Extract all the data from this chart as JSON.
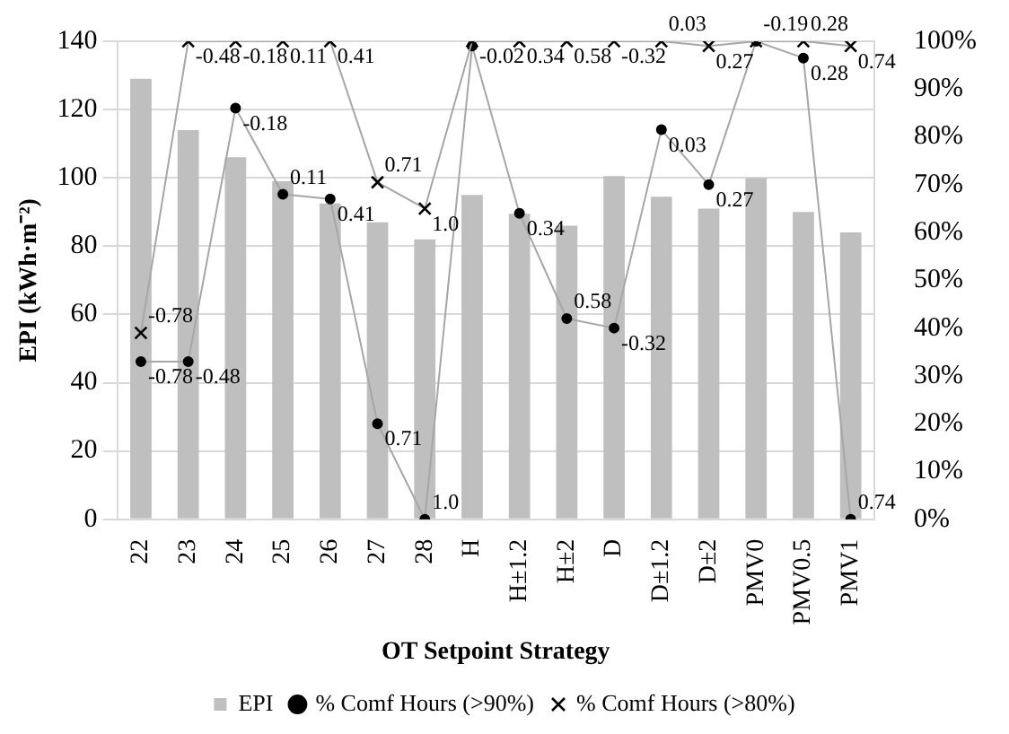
{
  "chart_data": {
    "type": "bar",
    "xlabel": "OT Setpoint Strategy",
    "ylabel": "EPI (kWh·m⁻²)",
    "categories": [
      "22",
      "23",
      "24",
      "25",
      "26",
      "27",
      "28",
      "H",
      "H±1.2",
      "H±2",
      "D",
      "D±1.2",
      "D±2",
      "PMV0",
      "PMV0.5",
      "PMV1"
    ],
    "series": [
      {
        "name": "EPI",
        "type": "bar",
        "color": "#bfbfbf",
        "values": [
          129,
          114,
          106,
          99,
          92.5,
          87,
          82,
          95,
          89.5,
          86,
          100.5,
          94.5,
          91,
          100,
          90,
          84
        ]
      },
      {
        "name": "% Comf Hours (>90%)",
        "type": "line",
        "axis": "y2",
        "color": "#000000",
        "marker": "circle",
        "values": [
          33,
          33,
          86,
          68,
          67,
          20,
          0,
          99,
          64,
          42,
          40,
          81.5,
          70,
          100,
          96.5,
          0
        ]
      },
      {
        "name": "% Comf Hours (>80%)",
        "type": "line",
        "axis": "y2",
        "color": "#000000",
        "marker": "cross",
        "values": [
          39,
          100,
          100,
          100,
          100,
          70.5,
          65,
          100,
          100,
          100,
          100,
          100,
          99,
          100,
          100,
          99
        ]
      }
    ],
    "annotations": [
      {
        "text": "-0.78",
        "x": "22",
        "y": 46.2
      },
      {
        "text": "-0.48",
        "x": "23",
        "y": 46.2
      },
      {
        "text": "-0.18",
        "x": "24",
        "y": 120.4
      },
      {
        "text": "0.11",
        "x": "25",
        "y": 95.2
      },
      {
        "text": "0.41",
        "x": "26",
        "y": 93.8
      },
      {
        "text": "0.71",
        "x": "27",
        "y": 28
      },
      {
        "text": "1.0",
        "x": "28",
        "y": 0
      },
      {
        "text": "0.34",
        "x": "H±1.2",
        "y": 89.6
      },
      {
        "text": "0.58",
        "x": "H±2",
        "y": 58.8
      },
      {
        "text": "-0.32",
        "x": "D",
        "y": 56
      },
      {
        "text": "0.03",
        "x": "D±1.2",
        "y": 114.1
      },
      {
        "text": "0.27",
        "x": "D±2",
        "y": 98
      },
      {
        "text": "-0.19",
        "x": "PMV0",
        "y": 140
      },
      {
        "text": "0.28",
        "x": "PMV0.5",
        "y": 135.1
      },
      {
        "text": "0.74",
        "x": "PMV1",
        "y": 0
      },
      {
        "text": "-0.78",
        "x": "22",
        "y": 54.6
      },
      {
        "text": "-0.48",
        "x": "23",
        "y": 140
      },
      {
        "text": "-0.18",
        "x": "24",
        "y": 140
      },
      {
        "text": "0.11",
        "x": "25",
        "y": 140
      },
      {
        "text": "0.41",
        "x": "26",
        "y": 140
      },
      {
        "text": "0.71",
        "x": "27",
        "y": 98.7
      },
      {
        "text": "1.0",
        "x": "28",
        "y": 91
      },
      {
        "text": "-0.02",
        "x": "H",
        "y": 140
      },
      {
        "text": "0.34",
        "x": "H±1.2",
        "y": 140
      },
      {
        "text": "0.58",
        "x": "H±2",
        "y": 140
      },
      {
        "text": "-0.32",
        "x": "D",
        "y": 140
      },
      {
        "text": "0.03",
        "x": "D±1.2",
        "y": 140
      },
      {
        "text": "0.27",
        "x": "D±2",
        "y": 138.6
      },
      {
        "text": "0.28",
        "x": "PMV0.5",
        "y": 140
      },
      {
        "text": "0.74",
        "x": "PMV1",
        "y": 138.6
      }
    ],
    "ylim": [
      0,
      140
    ],
    "yticks": [
      0,
      20,
      40,
      60,
      80,
      100,
      120,
      140
    ],
    "y2lim": [
      0,
      100
    ],
    "y2ticks": [
      {
        "value": 0,
        "label": "0%"
      },
      {
        "value": 10,
        "label": "10%"
      },
      {
        "value": 20,
        "label": "20%"
      },
      {
        "value": 30,
        "label": "30%"
      },
      {
        "value": 40,
        "label": "40%"
      },
      {
        "value": 50,
        "label": "50%"
      },
      {
        "value": 60,
        "label": "60%"
      },
      {
        "value": 70,
        "label": "70%"
      },
      {
        "value": 80,
        "label": "80%"
      },
      {
        "value": 90,
        "label": "90%"
      },
      {
        "value": 100,
        "label": "100%"
      }
    ],
    "grid": "y",
    "legend": "bottom"
  }
}
